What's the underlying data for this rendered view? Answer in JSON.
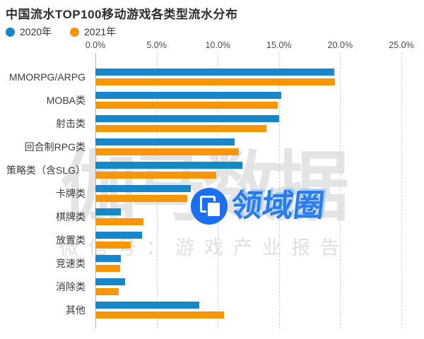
{
  "title": "中国流水TOP100移动游戏各类型流水分布",
  "legend": {
    "items": [
      {
        "label": "2020年"
      },
      {
        "label": "2021年"
      }
    ]
  },
  "chart_data": {
    "type": "bar",
    "orientation": "horizontal",
    "title": "中国流水TOP100移动游戏各类型流水分布",
    "categories": [
      "MMORPG/ARPG",
      "MOBA类",
      "射击类",
      "回合制RPG类",
      "策略类（含SLG）",
      "卡牌类",
      "棋牌类",
      "放置类",
      "竞速类",
      "消除类",
      "其他"
    ],
    "series": [
      {
        "name": "2020年",
        "color": "#1688c9",
        "values": [
          19.5,
          15.2,
          15.0,
          11.4,
          12.0,
          7.8,
          2.1,
          3.8,
          2.1,
          2.4,
          8.5
        ]
      },
      {
        "name": "2021年",
        "color": "#f79502",
        "values": [
          19.6,
          14.9,
          14.0,
          11.7,
          9.9,
          7.5,
          3.9,
          2.9,
          2.0,
          1.9,
          10.5
        ]
      }
    ],
    "xlim": [
      0,
      25
    ],
    "x_ticks": [
      "0.0%",
      "5.0%",
      "10.0%",
      "15.0%",
      "20.0%",
      "25.0%"
    ],
    "xlabel": "",
    "ylabel": "",
    "grid": "vertical-dashed",
    "legend_position": "top-left",
    "values_unit": "percent"
  },
  "watermarks": {
    "background_text": "伽马数据",
    "background_subtext": "微信号：游戏产业报告",
    "logo_text": "领域圈"
  }
}
